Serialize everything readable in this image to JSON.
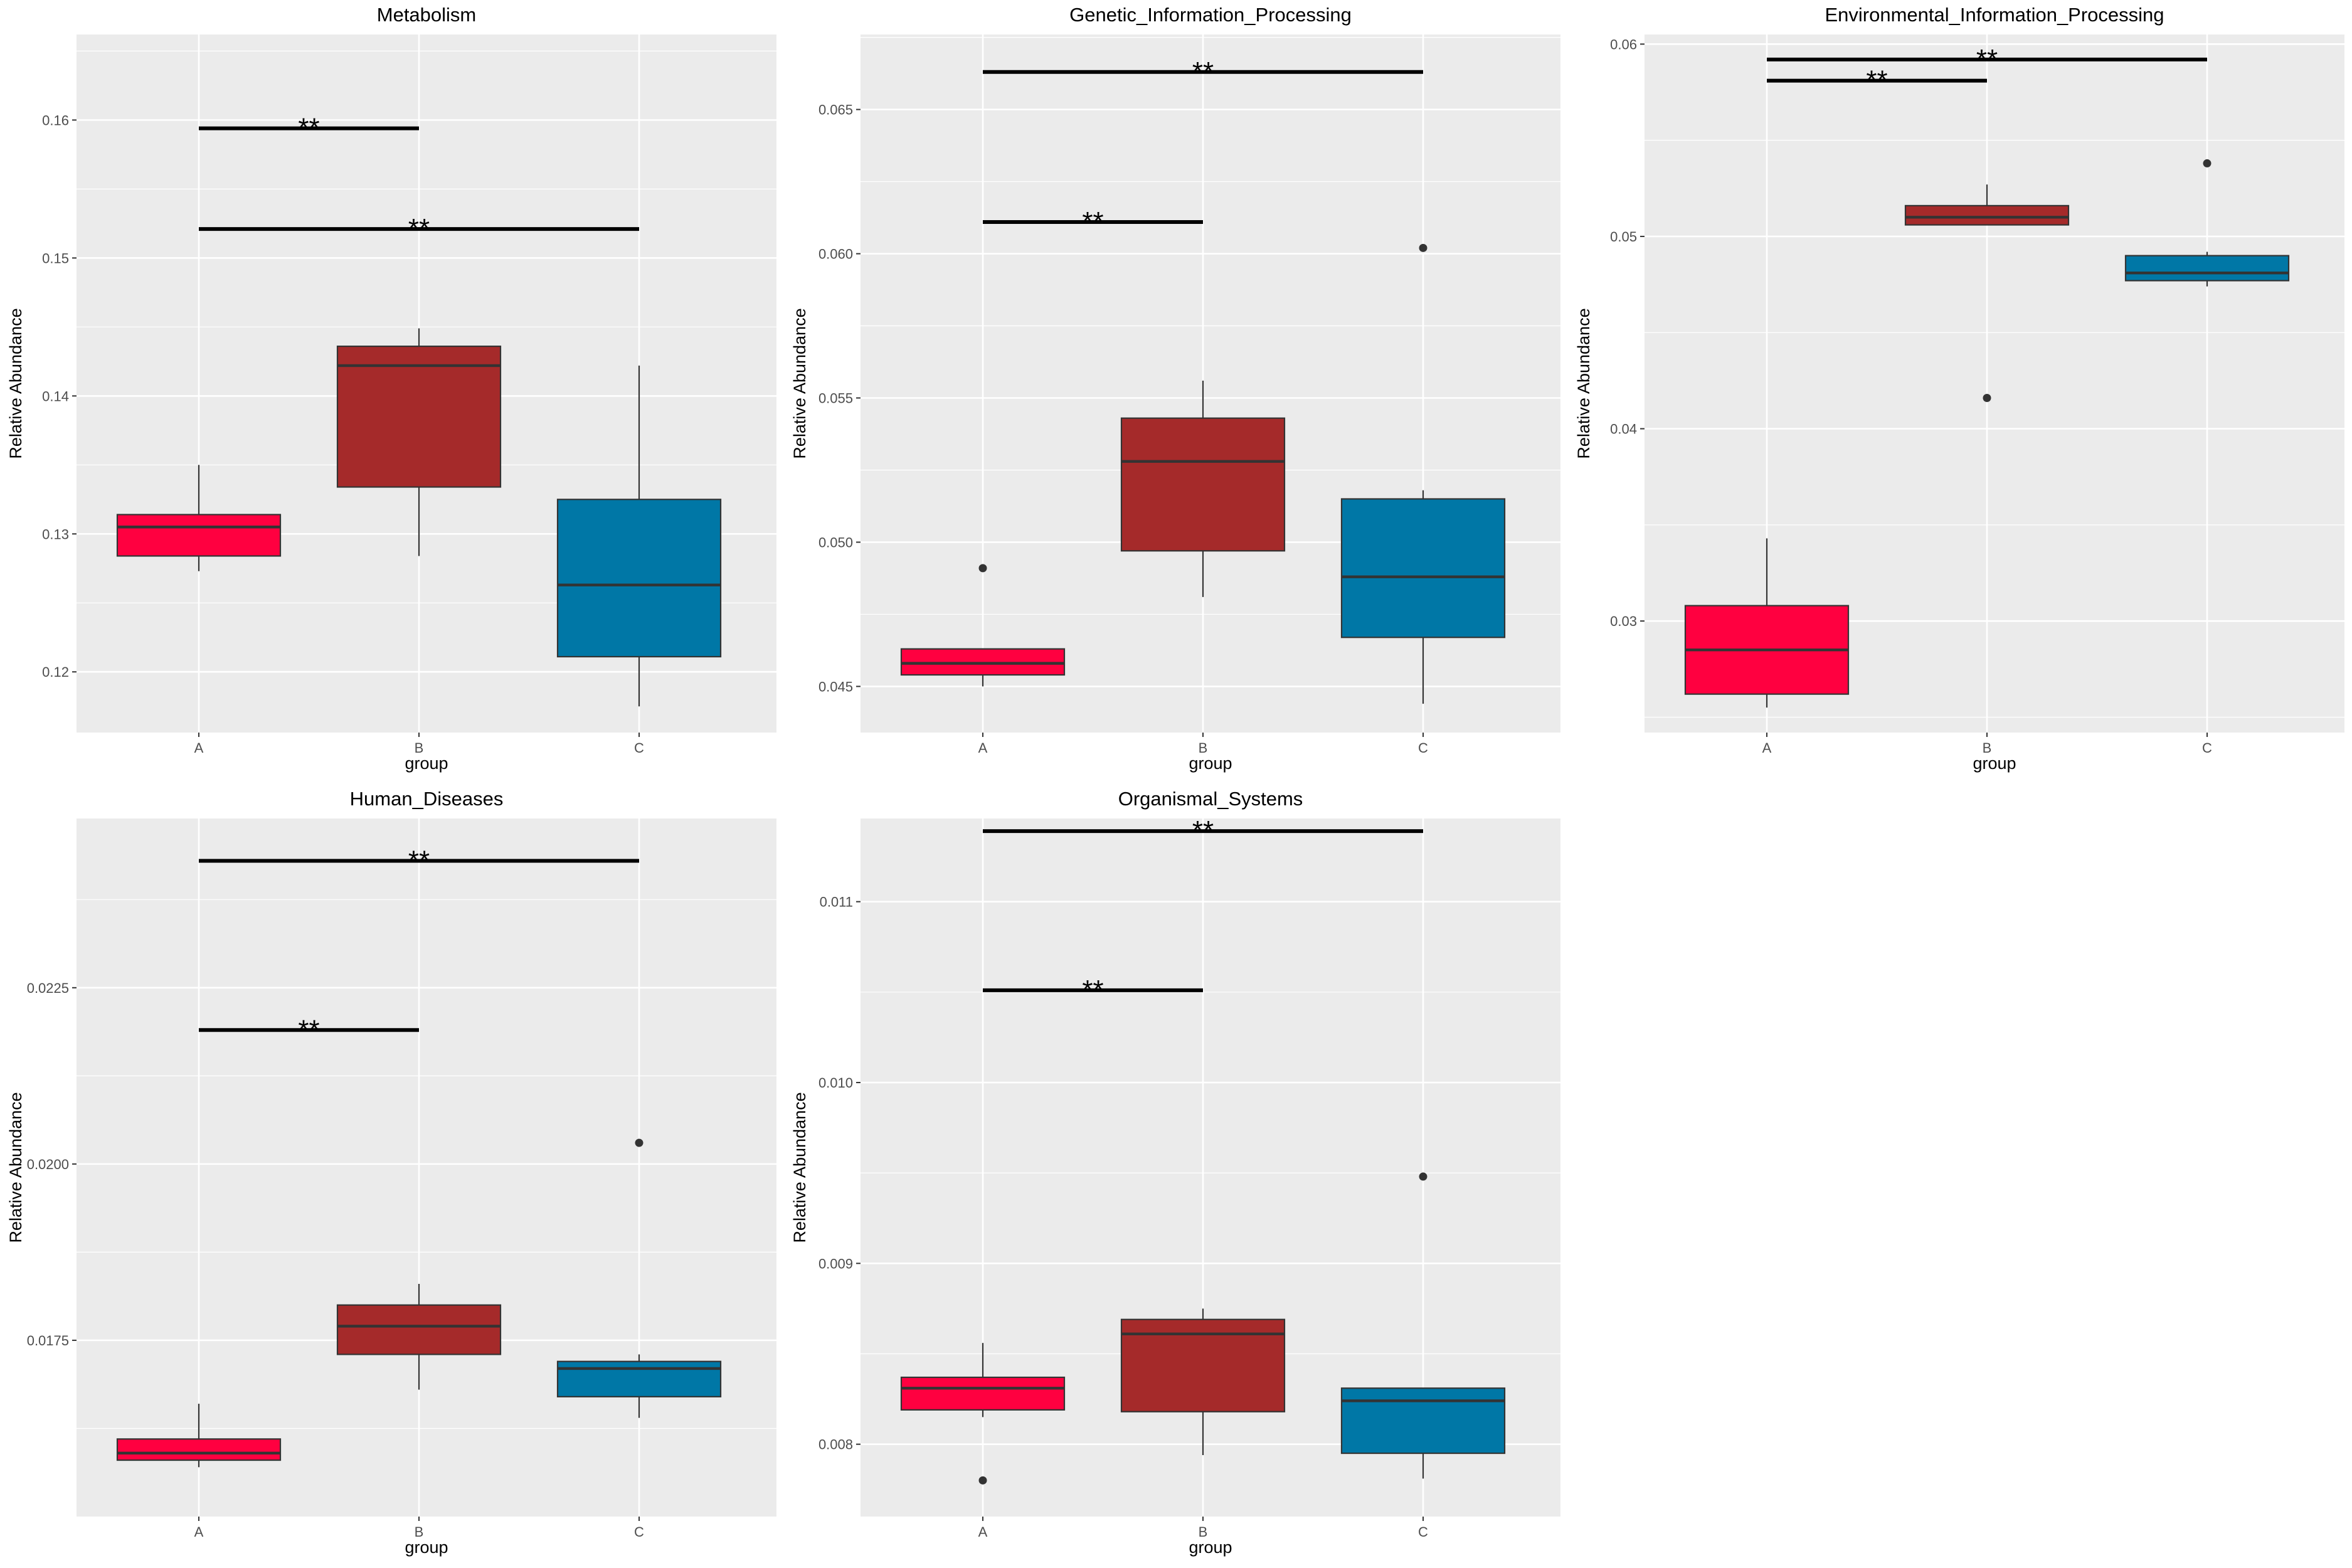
{
  "colors": {
    "A": "#ff0040",
    "B": "#a52a2a",
    "C": "#0077a6",
    "panel_bg": "#ebebeb",
    "grid": "#ffffff",
    "box_line": "#333333"
  },
  "chart_data": [
    {
      "type": "boxplot",
      "title": "Metabolism",
      "xlabel": "group",
      "ylabel": "Relative Abundance",
      "categories": [
        "A",
        "B",
        "C"
      ],
      "ylim": [
        0.1156,
        0.1662
      ],
      "yticks": [
        0.12,
        0.13,
        0.14,
        0.15,
        0.16
      ],
      "ytick_labels": [
        "0.12",
        "0.13",
        "0.14",
        "0.15",
        "0.16"
      ],
      "boxes": [
        {
          "group": "A",
          "whisker_low": 0.1273,
          "q1": 0.1284,
          "median": 0.1305,
          "q3": 0.1314,
          "whisker_high": 0.135,
          "outliers": []
        },
        {
          "group": "B",
          "whisker_low": 0.1284,
          "q1": 0.1334,
          "median": 0.1422,
          "q3": 0.1436,
          "whisker_high": 0.1449,
          "outliers": []
        },
        {
          "group": "C",
          "whisker_low": 0.1175,
          "q1": 0.1211,
          "median": 0.1263,
          "q3": 0.1325,
          "whisker_high": 0.1422,
          "outliers": []
        }
      ],
      "significance": [
        {
          "from": "A",
          "to": "B",
          "y": 0.1594,
          "label": "**"
        },
        {
          "from": "A",
          "to": "C",
          "y": 0.1521,
          "label": "**"
        }
      ]
    },
    {
      "type": "boxplot",
      "title": "Genetic_Information_Processing",
      "xlabel": "group",
      "ylabel": "Relative Abundance",
      "categories": [
        "A",
        "B",
        "C"
      ],
      "ylim": [
        0.0434,
        0.0676
      ],
      "yticks": [
        0.045,
        0.05,
        0.055,
        0.06,
        0.065
      ],
      "ytick_labels": [
        "0.045",
        "0.050",
        "0.055",
        "0.060",
        "0.065"
      ],
      "boxes": [
        {
          "group": "A",
          "whisker_low": 0.045,
          "q1": 0.0454,
          "median": 0.0458,
          "q3": 0.0463,
          "whisker_high": 0.0463,
          "outliers": [
            0.0491
          ]
        },
        {
          "group": "B",
          "whisker_low": 0.0481,
          "q1": 0.0497,
          "median": 0.0528,
          "q3": 0.0543,
          "whisker_high": 0.0556,
          "outliers": []
        },
        {
          "group": "C",
          "whisker_low": 0.0444,
          "q1": 0.0467,
          "median": 0.0488,
          "q3": 0.0515,
          "whisker_high": 0.0518,
          "outliers": [
            0.0602
          ]
        }
      ],
      "significance": [
        {
          "from": "A",
          "to": "C",
          "y": 0.0663,
          "label": "**"
        },
        {
          "from": "A",
          "to": "B",
          "y": 0.0611,
          "label": "**"
        }
      ]
    },
    {
      "type": "boxplot",
      "title": "Environmental_Information_Processing",
      "xlabel": "group",
      "ylabel": "Relative Abundance",
      "categories": [
        "A",
        "B",
        "C"
      ],
      "ylim": [
        0.0242,
        0.0605
      ],
      "yticks": [
        0.03,
        0.04,
        0.05,
        0.06
      ],
      "ytick_labels": [
        "0.03",
        "0.04",
        "0.05",
        "0.06"
      ],
      "boxes": [
        {
          "group": "A",
          "whisker_low": 0.0255,
          "q1": 0.0262,
          "median": 0.0285,
          "q3": 0.0308,
          "whisker_high": 0.0343,
          "outliers": []
        },
        {
          "group": "B",
          "whisker_low": 0.0506,
          "q1": 0.0506,
          "median": 0.051,
          "q3": 0.0516,
          "whisker_high": 0.0527,
          "outliers": [
            0.0416
          ]
        },
        {
          "group": "C",
          "whisker_low": 0.0474,
          "q1": 0.0477,
          "median": 0.0481,
          "q3": 0.049,
          "whisker_high": 0.0492,
          "outliers": [
            0.0538
          ]
        }
      ],
      "significance": [
        {
          "from": "A",
          "to": "C",
          "y": 0.0592,
          "label": "**"
        },
        {
          "from": "A",
          "to": "B",
          "y": 0.0581,
          "label": "**"
        }
      ]
    },
    {
      "type": "boxplot",
      "title": "Human_Diseases",
      "xlabel": "group",
      "ylabel": "Relative Abundance",
      "categories": [
        "A",
        "B",
        "C"
      ],
      "ylim": [
        0.015,
        0.0249
      ],
      "yticks": [
        0.0175,
        0.02,
        0.0225
      ],
      "ytick_labels": [
        "0.0175",
        "0.0200",
        "0.0225"
      ],
      "boxes": [
        {
          "group": "A",
          "whisker_low": 0.0157,
          "q1": 0.0158,
          "median": 0.0159,
          "q3": 0.0161,
          "whisker_high": 0.0166,
          "outliers": []
        },
        {
          "group": "B",
          "whisker_low": 0.0168,
          "q1": 0.0173,
          "median": 0.0177,
          "q3": 0.018,
          "whisker_high": 0.0183,
          "outliers": []
        },
        {
          "group": "C",
          "whisker_low": 0.0164,
          "q1": 0.0167,
          "median": 0.0171,
          "q3": 0.0172,
          "whisker_high": 0.0173,
          "outliers": [
            0.0203
          ]
        }
      ],
      "significance": [
        {
          "from": "A",
          "to": "C",
          "y": 0.0243,
          "label": "**"
        },
        {
          "from": "A",
          "to": "B",
          "y": 0.0219,
          "label": "**"
        }
      ]
    },
    {
      "type": "boxplot",
      "title": "Organismal_Systems",
      "xlabel": "group",
      "ylabel": "Relative Abundance",
      "categories": [
        "A",
        "B",
        "C"
      ],
      "ylim": [
        0.0076,
        0.01146
      ],
      "yticks": [
        0.008,
        0.009,
        0.01,
        0.011
      ],
      "ytick_labels": [
        "0.008",
        "0.009",
        "0.010",
        "0.011"
      ],
      "boxes": [
        {
          "group": "A",
          "whisker_low": 0.00815,
          "q1": 0.00819,
          "median": 0.00831,
          "q3": 0.00837,
          "whisker_high": 0.00856,
          "outliers": [
            0.0078
          ]
        },
        {
          "group": "B",
          "whisker_low": 0.00794,
          "q1": 0.00818,
          "median": 0.00861,
          "q3": 0.00869,
          "whisker_high": 0.00875,
          "outliers": []
        },
        {
          "group": "C",
          "whisker_low": 0.00781,
          "q1": 0.00795,
          "median": 0.00824,
          "q3": 0.00831,
          "whisker_high": 0.00831,
          "outliers": [
            0.00948
          ]
        }
      ],
      "significance": [
        {
          "from": "A",
          "to": "C",
          "y": 0.01139,
          "label": "**"
        },
        {
          "from": "A",
          "to": "B",
          "y": 0.01051,
          "label": "**"
        }
      ]
    }
  ]
}
